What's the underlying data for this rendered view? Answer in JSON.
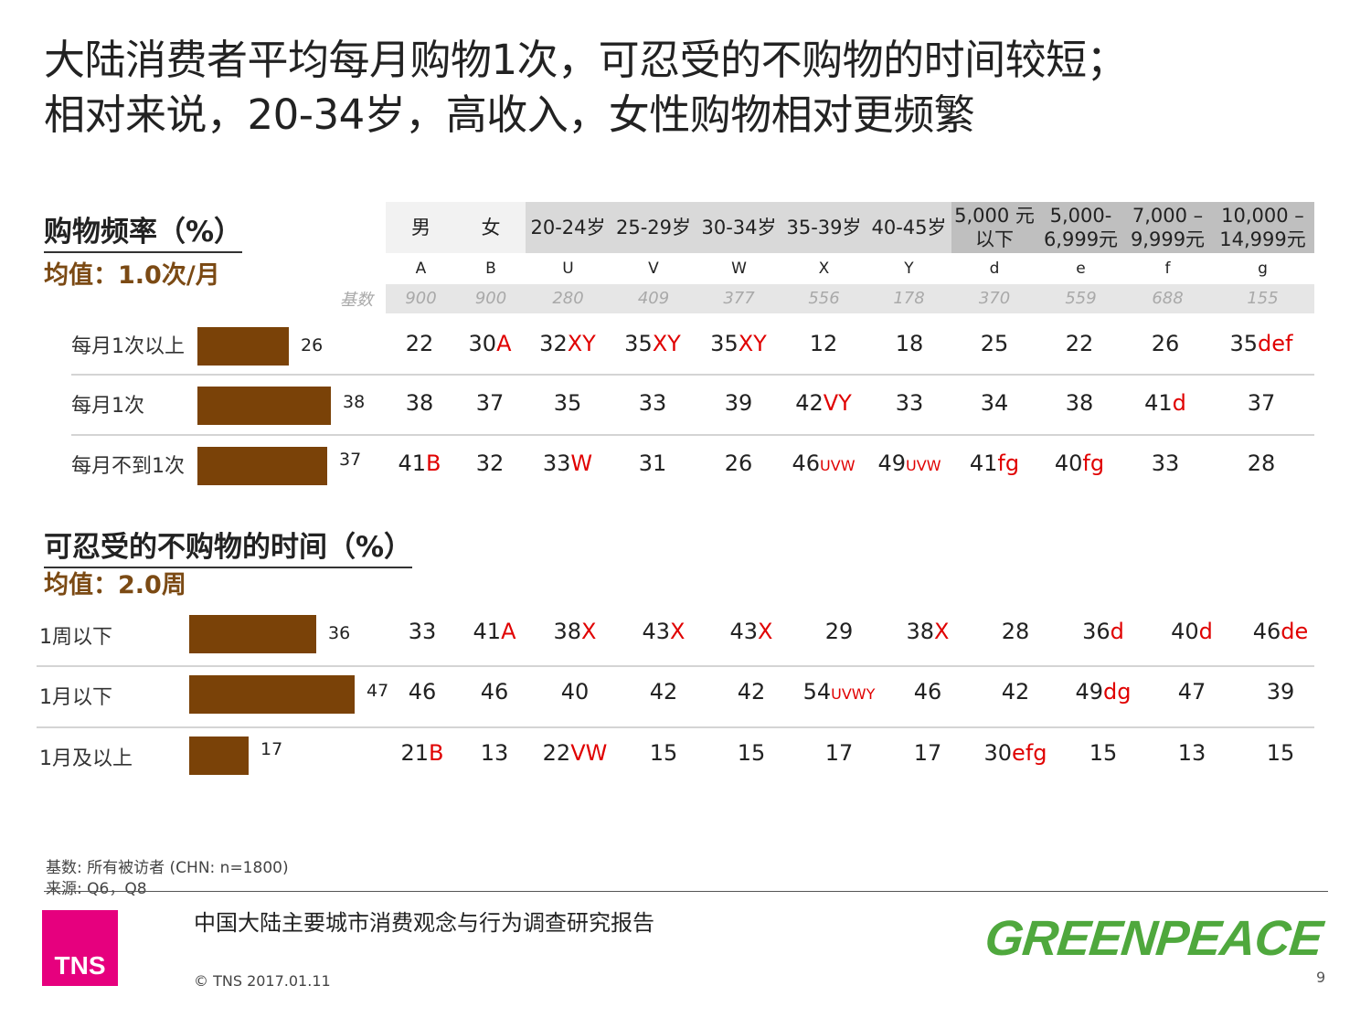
{
  "title": {
    "line1": "大陆消费者平均每月购物1次，可忍受的不购物的时间较短；",
    "line2": "相对来说，20-34岁，高收入，女性购物相对更频繁"
  },
  "base_label": "基数",
  "columns": [
    {
      "header": "男",
      "code": "A",
      "base": "900"
    },
    {
      "header": "女",
      "code": "B",
      "base": "900"
    },
    {
      "header": "20-24岁",
      "code": "U",
      "base": "280"
    },
    {
      "header": "25-29岁",
      "code": "V",
      "base": "409"
    },
    {
      "header": "30-34岁",
      "code": "W",
      "base": "377"
    },
    {
      "header": "35-39岁",
      "code": "X",
      "base": "556"
    },
    {
      "header": "40-45岁",
      "code": "Y",
      "base": "178"
    },
    {
      "header": "5,000 元",
      "header2": "以下",
      "code": "d",
      "base": "370"
    },
    {
      "header": "5,000-",
      "header2": "6,999元",
      "code": "e",
      "base": "559"
    },
    {
      "header": "7,000 –",
      "header2": "9,999元",
      "code": "f",
      "base": "688"
    },
    {
      "header": "10,000 –",
      "header2": "14,999元",
      "code": "g",
      "base": "155"
    }
  ],
  "section1": {
    "title": "购物频率（%）",
    "mean": "均值：1.0次/月",
    "rows": [
      {
        "label": "每月1次以上",
        "total": 26,
        "cells": [
          [
            "22",
            ""
          ],
          [
            "30",
            "A"
          ],
          [
            "32",
            "XY"
          ],
          [
            "35",
            "XY"
          ],
          [
            "35",
            "XY"
          ],
          [
            "12",
            ""
          ],
          [
            "18",
            ""
          ],
          [
            "25",
            ""
          ],
          [
            "22",
            ""
          ],
          [
            "26",
            ""
          ],
          [
            "35",
            "def"
          ]
        ]
      },
      {
        "label": "每月1次",
        "total": 38,
        "cells": [
          [
            "38",
            ""
          ],
          [
            "37",
            ""
          ],
          [
            "35",
            ""
          ],
          [
            "33",
            ""
          ],
          [
            "39",
            ""
          ],
          [
            "42",
            "VY"
          ],
          [
            "33",
            ""
          ],
          [
            "34",
            ""
          ],
          [
            "38",
            ""
          ],
          [
            "41",
            "d"
          ],
          [
            "37",
            ""
          ]
        ]
      },
      {
        "label": "每月不到1次",
        "total": 37,
        "cells": [
          [
            "41",
            "B"
          ],
          [
            "32",
            ""
          ],
          [
            "33",
            "W"
          ],
          [
            "31",
            ""
          ],
          [
            "26",
            ""
          ],
          [
            "46",
            "UVW"
          ],
          [
            "49",
            "UVW"
          ],
          [
            "41",
            "fg"
          ],
          [
            "40",
            "fg"
          ],
          [
            "33",
            ""
          ],
          [
            "28",
            ""
          ]
        ]
      }
    ]
  },
  "section2": {
    "title": "可忍受的不购物的时间（%）",
    "mean": "均值：2.0周",
    "rows": [
      {
        "label": "1周以下",
        "total": 36,
        "cells": [
          [
            "33",
            ""
          ],
          [
            "41",
            "A"
          ],
          [
            "38",
            "X"
          ],
          [
            "43",
            "X"
          ],
          [
            "43",
            "X"
          ],
          [
            "29",
            ""
          ],
          [
            "38",
            "X"
          ],
          [
            "28",
            ""
          ],
          [
            "36",
            "d"
          ],
          [
            "40",
            "d"
          ],
          [
            "46",
            "de"
          ]
        ]
      },
      {
        "label": "1月以下",
        "total": 47,
        "cells": [
          [
            "46",
            ""
          ],
          [
            "46",
            ""
          ],
          [
            "40",
            ""
          ],
          [
            "42",
            ""
          ],
          [
            "42",
            ""
          ],
          [
            "54",
            "UVWY"
          ],
          [
            "46",
            ""
          ],
          [
            "42",
            ""
          ],
          [
            "49",
            "dg"
          ],
          [
            "47",
            ""
          ],
          [
            "39",
            ""
          ]
        ]
      },
      {
        "label": "1月及以上",
        "total": 17,
        "cells": [
          [
            "21",
            "B"
          ],
          [
            "13",
            ""
          ],
          [
            "22",
            "VW"
          ],
          [
            "15",
            ""
          ],
          [
            "15",
            ""
          ],
          [
            "17",
            ""
          ],
          [
            "17",
            ""
          ],
          [
            "30",
            "efg"
          ],
          [
            "15",
            ""
          ],
          [
            "13",
            ""
          ],
          [
            "15",
            ""
          ]
        ]
      }
    ]
  },
  "footer": {
    "base_note": "基数: 所有被访者 (CHN: n=1800)",
    "source_note": "来源: Q6，Q8",
    "report_title": "中国大陆主要城市消费观念与行为调查研究报告",
    "copyright": "© TNS 2017.01.11",
    "page_number": "9",
    "tns_logo": "TNS",
    "greenpeace_logo": "GREENPEACE"
  },
  "colors": {
    "bar": "#7a4208",
    "significance": "#e00000",
    "mean_text": "#7b4a14",
    "tns_magenta": "#e6007e",
    "greenpeace_green": "#4fa83d",
    "header_light": "#f2f2f2",
    "header_mid": "#d9d9d9",
    "header_dark": "#bfbfbf"
  }
}
